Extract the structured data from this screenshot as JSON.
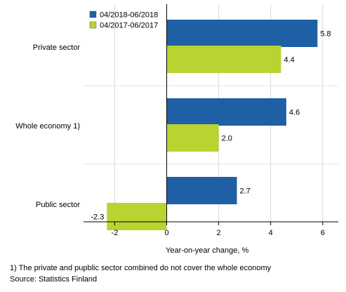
{
  "chart_data": {
    "type": "bar",
    "orientation": "horizontal",
    "categories": [
      "Private sector",
      "Whole economy 1)",
      "Public sector"
    ],
    "series": [
      {
        "name": "04/2018-06/2018",
        "color": "#1f5fa6",
        "values": [
          5.8,
          4.6,
          2.7
        ]
      },
      {
        "name": "04/2017-06/2017",
        "color": "#b8d430",
        "values": [
          4.4,
          2.0,
          -2.3
        ]
      }
    ],
    "xlabel": "Year-on-year change, %",
    "xlim": [
      -3.2,
      6.6
    ],
    "xticks": [
      -2,
      0,
      2,
      4,
      6
    ],
    "tick_labels": [
      "-2",
      "0",
      "2",
      "4",
      "6"
    ],
    "grid": true,
    "legend_position": "top-left"
  },
  "footnote": "1) The private and pupblic sector combined do not cover the whole economy",
  "source": "Source: Statistics Finland"
}
